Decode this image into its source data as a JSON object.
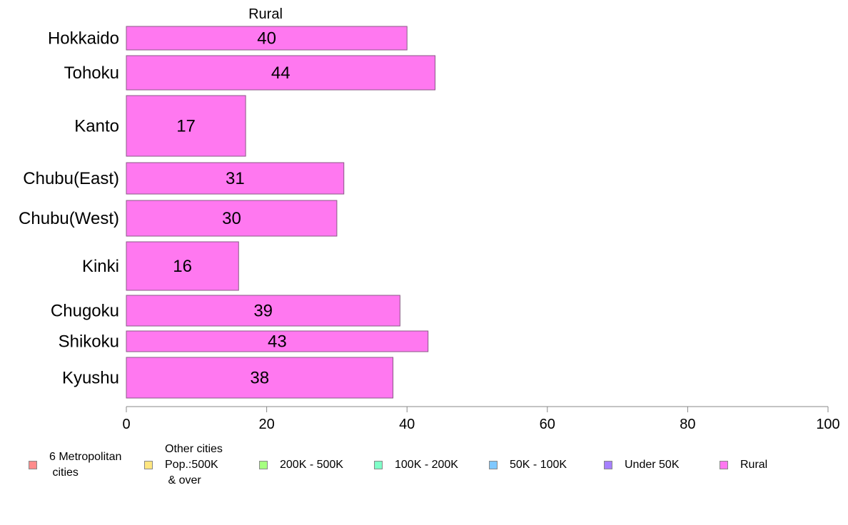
{
  "chart_data": {
    "type": "bar",
    "orientation": "horizontal",
    "title": "Rural",
    "categories": [
      "Hokkaido",
      "Tohoku",
      "Kanto",
      "Chubu(East)",
      "Chubu(West)",
      "Kinki",
      "Chugoku",
      "Shikoku",
      "Kyushu"
    ],
    "series": [
      {
        "name": "Rural",
        "values": [
          40,
          44,
          17,
          31,
          30,
          16,
          39,
          43,
          38
        ],
        "color": "#ff78f0"
      }
    ],
    "data_labels": [
      "40",
      "44",
      "17",
      "31",
      "30",
      "16",
      "39",
      "43",
      "38"
    ],
    "xlim": [
      0,
      100
    ],
    "x_ticks": [
      0,
      20,
      40,
      60,
      80,
      100
    ],
    "xlabel": "",
    "ylabel": "",
    "grid": false,
    "legend_position": "bottom",
    "legend": [
      {
        "label": "6 Metropolitan\n cities",
        "color": "#ff8c8c"
      },
      {
        "label": "Other cities\nPop.:500K\n & over",
        "color": "#ffe680"
      },
      {
        "label": "200K - 500K",
        "color": "#a6ff80"
      },
      {
        "label": "100K - 200K",
        "color": "#80ffc8"
      },
      {
        "label": "50K - 100K",
        "color": "#80c8ff"
      },
      {
        "label": "Under 50K",
        "color": "#a680ff"
      },
      {
        "label": "Rural",
        "color": "#ff78f0"
      }
    ]
  }
}
